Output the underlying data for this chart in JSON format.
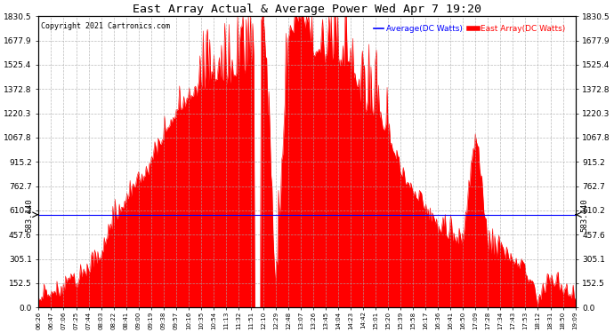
{
  "title": "East Array Actual & Average Power Wed Apr 7 19:20",
  "copyright": "Copyright 2021 Cartronics.com",
  "legend_avg": "Average(DC Watts)",
  "legend_east": "East Array(DC Watts)",
  "avg_value": 583.44,
  "y_ticks": [
    0.0,
    152.5,
    305.1,
    457.6,
    610.2,
    762.7,
    915.2,
    1067.8,
    1220.3,
    1372.8,
    1525.4,
    1677.9,
    1830.5
  ],
  "y_label": "583.440",
  "x_labels": [
    "06:26",
    "06:47",
    "07:06",
    "07:25",
    "07:44",
    "08:03",
    "08:22",
    "08:41",
    "09:00",
    "09:19",
    "09:38",
    "09:57",
    "10:16",
    "10:35",
    "10:54",
    "11:13",
    "11:32",
    "11:51",
    "12:10",
    "12:29",
    "12:48",
    "13:07",
    "13:26",
    "13:45",
    "14:04",
    "14:23",
    "14:42",
    "15:01",
    "15:20",
    "15:39",
    "15:58",
    "16:17",
    "16:36",
    "16:41",
    "16:50",
    "17:09",
    "17:28",
    "17:34",
    "17:43",
    "17:53",
    "18:12",
    "18:31",
    "18:50",
    "19:09"
  ],
  "background_color": "#ffffff",
  "grid_color": "#aaaaaa",
  "fill_color": "#ff0000",
  "line_color": "#ff0000",
  "avg_line_color": "#0000ff",
  "title_color": "#000000",
  "copyright_color": "#000000",
  "figwidth": 6.9,
  "figheight": 3.75,
  "dpi": 100
}
